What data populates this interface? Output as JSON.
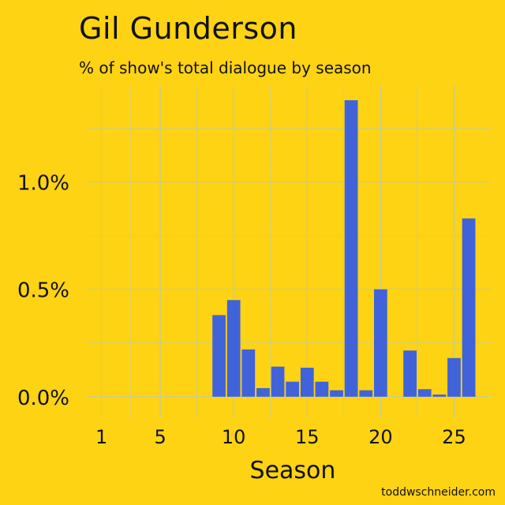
{
  "title": "Gil Gunderson",
  "subtitle": "% of show's total dialogue by season",
  "credit": "toddwschneider.com",
  "colors": {
    "background": "#FDD314",
    "bar": "#4163D9",
    "grid": "#B9CBB0"
  },
  "chart_data": {
    "type": "bar",
    "xlabel": "Season",
    "ylabel": "",
    "x": [
      9,
      10,
      11,
      12,
      13,
      14,
      15,
      16,
      17,
      18,
      19,
      20,
      22,
      23,
      24,
      25,
      26
    ],
    "values": [
      0.38,
      0.45,
      0.22,
      0.04,
      0.14,
      0.07,
      0.135,
      0.07,
      0.03,
      1.38,
      0.03,
      0.5,
      0.215,
      0.035,
      0.01,
      0.18,
      0.83
    ],
    "xlim": [
      0,
      27.5
    ],
    "ylim": [
      -0.1,
      1.45
    ],
    "x_ticks": [
      1,
      5,
      10,
      15,
      20,
      25
    ],
    "x_tick_labels": [
      "1",
      "5",
      "10",
      "15",
      "20",
      "25"
    ],
    "y_ticks": [
      0.0,
      0.5,
      1.0
    ],
    "y_tick_labels": [
      "0.0%",
      "0.5%",
      "1.0%"
    ],
    "grid": true
  }
}
